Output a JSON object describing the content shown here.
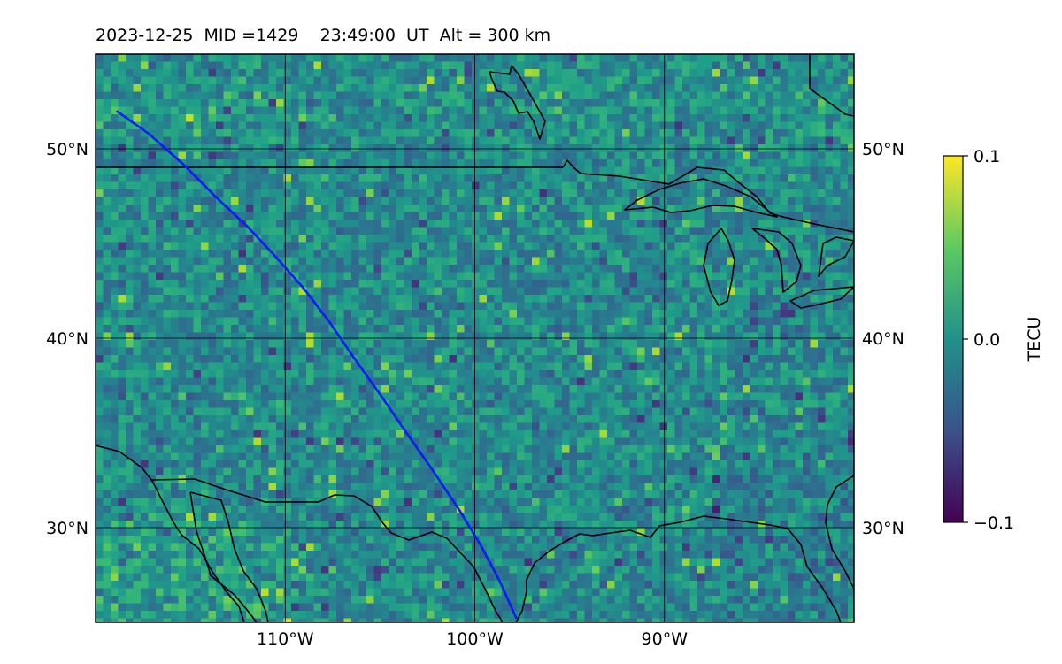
{
  "title": "2023-12-25  MID =1429    23:49:00  UT  Alt = 300 km",
  "map": {
    "lon_range": [
      -120,
      -80
    ],
    "lat_range": [
      25,
      55
    ],
    "lon_ticks": [
      -110,
      -100,
      -90
    ],
    "lat_ticks": [
      30,
      40,
      50
    ],
    "lon_tick_labels": [
      "110°W",
      "100°W",
      "90°W"
    ],
    "lat_tick_labels": [
      "30°N",
      "40°N",
      "50°N"
    ],
    "colormap": "viridis",
    "grid": true,
    "track_color": "#0a1cf5",
    "coastline_color": "#000000",
    "track": [
      [
        -118.9,
        52.0
      ],
      [
        -117.2,
        50.8
      ],
      [
        -115.4,
        49.2
      ],
      [
        -113.6,
        47.4
      ],
      [
        -112.0,
        45.9
      ],
      [
        -110.5,
        44.3
      ],
      [
        -109.0,
        42.6
      ],
      [
        -107.7,
        40.9
      ],
      [
        -106.4,
        39.0
      ],
      [
        -104.9,
        36.9
      ],
      [
        -103.6,
        35.0
      ],
      [
        -102.2,
        33.0
      ],
      [
        -100.8,
        30.9
      ],
      [
        -99.7,
        29.1
      ],
      [
        -98.7,
        27.2
      ],
      [
        -97.8,
        25.2
      ]
    ]
  },
  "colorbar": {
    "label": "TECU",
    "min": -0.1,
    "max": 0.1,
    "tick_labels": [
      "0.1",
      "0.0",
      "−0.1"
    ],
    "tick_values": [
      0.1,
      0.0,
      -0.1
    ]
  }
}
